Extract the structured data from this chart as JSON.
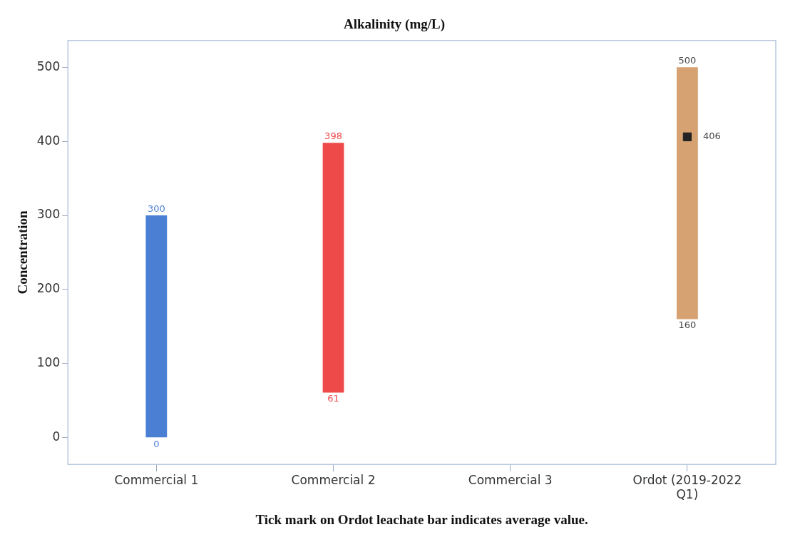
{
  "chart_data": {
    "type": "bar",
    "title": "Alkalinity (mg/L)",
    "ylabel": "Concentration",
    "categories": [
      "Commercial 1",
      "Commercial 2",
      "Commercial 3",
      "Ordot (2019-2022 Q1)"
    ],
    "base": [
      0,
      61,
      null,
      160
    ],
    "values": [
      300,
      337,
      null,
      340
    ],
    "colors": [
      "#4a7fd4",
      "#ef4a4a",
      "#888888",
      "#d6a272"
    ],
    "ylim": [
      -36,
      536
    ],
    "yticks": [
      0,
      100,
      200,
      300,
      400,
      500
    ],
    "grid": false,
    "legend": false,
    "annotations": [
      "Tick mark on Ordot leachate bar indicates average value.",
      {
        "text": "300",
        "x": "Commercial 1",
        "y": 300
      },
      {
        "text": "0",
        "x": "Commercial 1",
        "y": 0
      },
      {
        "text": "398",
        "x": "Commercial 2",
        "y": 398
      },
      {
        "text": "61",
        "x": "Commercial 2",
        "y": 61
      },
      {
        "text": "500",
        "x": "Ordot (2019-2022 Q1)",
        "y": 500
      },
      {
        "text": "160",
        "x": "Ordot (2019-2022 Q1)",
        "y": 160
      },
      {
        "text": "406",
        "x": "Ordot (2019-2022 Q1)",
        "y": 406
      }
    ],
    "series": [
      {
        "type": "scatter",
        "x": [
          "Ordot (2019-2022 Q1)"
        ],
        "values": [
          406
        ],
        "color": "#222222",
        "marker": "square"
      }
    ]
  }
}
